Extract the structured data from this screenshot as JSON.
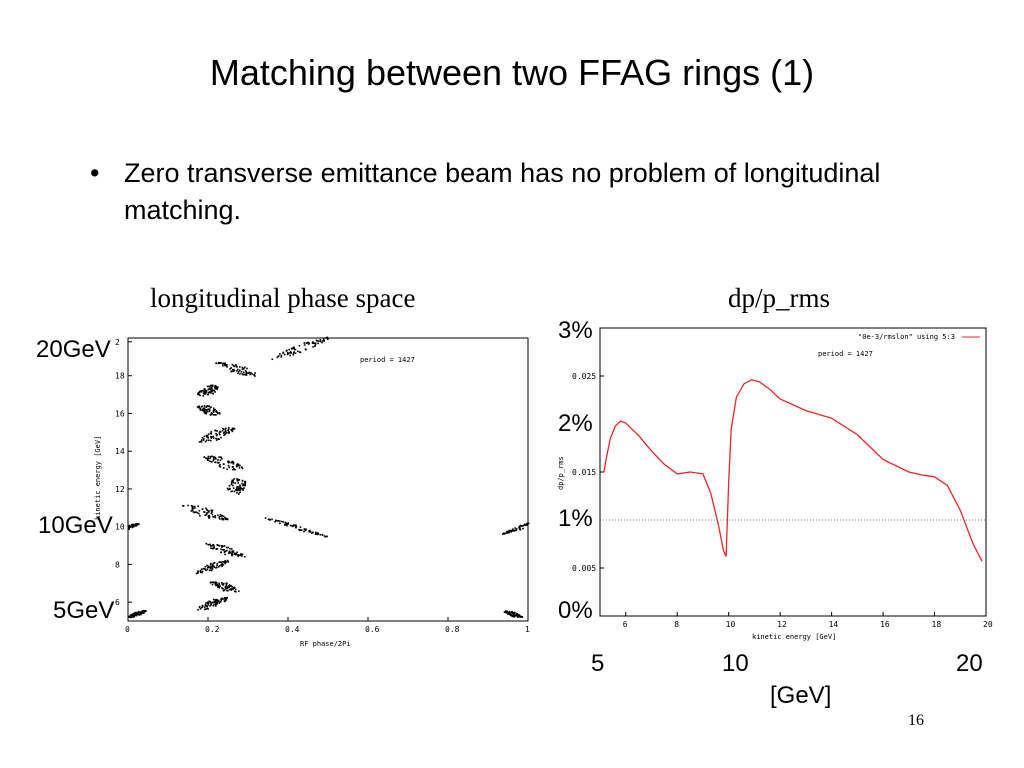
{
  "slide": {
    "title": "Matching between two FFAG rings (1)",
    "bullet_char": "•",
    "bullet": "Zero transverse emittance beam has no problem of longitudinal matching.",
    "slide_number": "16"
  },
  "colors": {
    "curve": "#e8262a",
    "points": "#000000"
  },
  "chart_data": [
    {
      "type": "scatter",
      "caption": "longitudinal phase space",
      "xlabel": "RF phase/2Pi",
      "ylabel": "kinetic energy [GeV]",
      "xlim": [
        0,
        1
      ],
      "ylim": [
        5,
        20
      ],
      "x_ticks": [
        "0",
        "0.2",
        "0.4",
        "0.6",
        "0.8",
        "1"
      ],
      "y_ticks": [
        "6",
        "8",
        "10",
        "12",
        "14",
        "16",
        "18",
        "2"
      ],
      "annotation": "period =   1427",
      "big_labels": [
        "20GeV",
        "10GeV",
        "5GeV"
      ],
      "clusters": [
        {
          "x": 0.02,
          "y": 5.4,
          "w": 0.05,
          "h": 0.25
        },
        {
          "x": 0.96,
          "y": 5.4,
          "w": 0.05,
          "h": 0.25
        },
        {
          "x": 0.21,
          "y": 5.95,
          "w": 0.09,
          "h": 0.45
        },
        {
          "x": 0.24,
          "y": 6.85,
          "w": 0.08,
          "h": 0.45
        },
        {
          "x": 0.21,
          "y": 7.9,
          "w": 0.09,
          "h": 0.45
        },
        {
          "x": 0.24,
          "y": 8.8,
          "w": 0.11,
          "h": 0.45
        },
        {
          "x": 0.0,
          "y": 10.0,
          "w": 0.06,
          "h": 0.22
        },
        {
          "x": 0.42,
          "y": 10.0,
          "w": 0.17,
          "h": 0.22
        },
        {
          "x": 0.98,
          "y": 10.0,
          "w": 0.1,
          "h": 0.22
        },
        {
          "x": 0.19,
          "y": 10.8,
          "w": 0.12,
          "h": 0.55
        },
        {
          "x": 0.27,
          "y": 12.2,
          "w": 0.05,
          "h": 0.95
        },
        {
          "x": 0.24,
          "y": 13.4,
          "w": 0.11,
          "h": 0.6
        },
        {
          "x": 0.22,
          "y": 14.9,
          "w": 0.1,
          "h": 0.6
        },
        {
          "x": 0.2,
          "y": 16.2,
          "w": 0.06,
          "h": 0.5
        },
        {
          "x": 0.2,
          "y": 17.25,
          "w": 0.06,
          "h": 0.6
        },
        {
          "x": 0.27,
          "y": 18.4,
          "w": 0.11,
          "h": 0.55
        },
        {
          "x": 0.43,
          "y": 19.5,
          "w": 0.16,
          "h": 0.45
        }
      ]
    },
    {
      "type": "line",
      "caption": "dp/p_rms",
      "xlabel": "kinetic energy [GeV]",
      "ylabel": "dp/p_rms",
      "xlim": [
        5,
        20
      ],
      "ylim": [
        0,
        0.03
      ],
      "x_ticks": [
        "6",
        "8",
        "10",
        "12",
        "14",
        "16",
        "18",
        "20"
      ],
      "y_ticks": [
        "0.005",
        "0.015",
        "0.025"
      ],
      "legend": "\"0e-3/rmslon\" using 5:3",
      "annotation": "period =   1427",
      "big_y_labels": [
        "3%",
        "2%",
        "1%",
        "0%"
      ],
      "big_x_labels": [
        "5",
        "10",
        "20"
      ],
      "big_x_unit": "[GeV]",
      "reference_line_y": 0.01,
      "series": [
        {
          "x": [
            5.15,
            5.25,
            5.4,
            5.6,
            5.8,
            6.0,
            6.5,
            7.0,
            7.5,
            8.0,
            8.5,
            9.0,
            9.3,
            9.6,
            9.8,
            9.9,
            10.0,
            10.1,
            10.3,
            10.6,
            10.9,
            11.2,
            11.6,
            12.0,
            13.0,
            14.0,
            15.0,
            16.0,
            17.0,
            17.5,
            18.0,
            18.5,
            19.0,
            19.5,
            19.85
          ],
          "y": [
            0.015,
            0.0165,
            0.0185,
            0.0198,
            0.0203,
            0.0201,
            0.0188,
            0.0172,
            0.0158,
            0.0148,
            0.015,
            0.0148,
            0.0128,
            0.0095,
            0.0068,
            0.0062,
            0.014,
            0.0195,
            0.0228,
            0.0242,
            0.0246,
            0.0244,
            0.0236,
            0.0226,
            0.0214,
            0.0206,
            0.0189,
            0.0163,
            0.015,
            0.0147,
            0.0145,
            0.0136,
            0.011,
            0.0075,
            0.0057
          ]
        }
      ]
    }
  ]
}
